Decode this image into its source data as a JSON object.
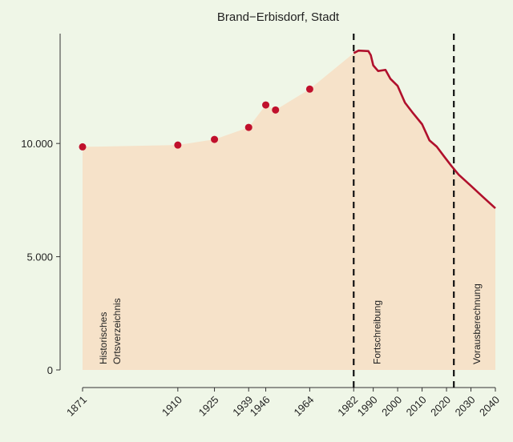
{
  "chart_data": {
    "type": "area",
    "title": "Brand−Erbisdorf, Stadt",
    "area_color": "#f6e2c9",
    "series": [
      {
        "style": "points",
        "color": "#c0102c",
        "x": [
          1871,
          1910,
          1925,
          1939,
          1946,
          1950,
          1964
        ],
        "values": [
          9850,
          9930,
          10180,
          10710,
          11700,
          11480,
          12400
        ]
      },
      {
        "style": "line",
        "color": "#b0102c",
        "x": [
          1982,
          1984,
          1988,
          1989,
          1990,
          1992,
          1995,
          1997,
          2000,
          2003,
          2006,
          2010,
          2013,
          2016,
          2019,
          2022,
          2025,
          2030,
          2035,
          2040
        ],
        "values": [
          13990,
          14100,
          14080,
          13900,
          13450,
          13200,
          13250,
          12860,
          12540,
          11800,
          11380,
          10850,
          10140,
          9860,
          9430,
          9010,
          8620,
          8130,
          7630,
          7140
        ]
      }
    ],
    "vlines": [
      1982,
      2023
    ],
    "annotations": [
      [
        "Historisches",
        "Ortsverzeichnis"
      ],
      [
        "Fortschreibung"
      ],
      [
        "Vorausberechnung"
      ]
    ],
    "xlim": [
      1871,
      2040
    ],
    "xticks": [
      1871,
      1910,
      1925,
      1939,
      1946,
      1964,
      1982,
      1990,
      2000,
      2010,
      2020,
      2030,
      2040
    ],
    "ylim": [
      0,
      14850
    ],
    "yticks": [
      0,
      {
        "value": 5000,
        "label": "5.000"
      },
      {
        "value": 10000,
        "label": "10.000"
      }
    ]
  }
}
